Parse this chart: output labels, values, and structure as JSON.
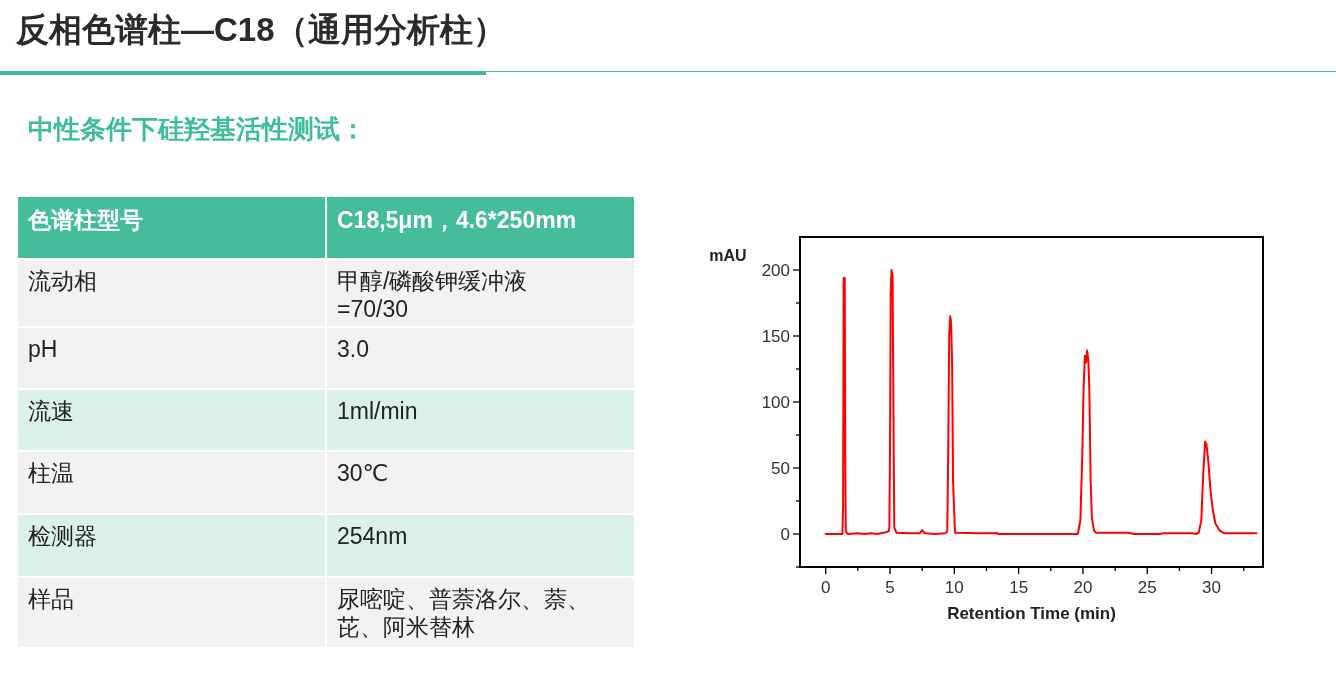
{
  "chart_data": [
    {
      "type": "other",
      "title": "反相色谱柱—C18（通用分析柱）",
      "subtitle": "中性条件下硅羟基活性测试：",
      "annotations": [
        "色谱柱型号",
        "C18,5μm，4.6*250mm",
        "流动相",
        "甲醇/磷酸钾缓冲液\n=70/30",
        "pH",
        "3.0",
        "流速",
        "1ml/min",
        "柱温",
        "30℃",
        "检测器",
        "254nm",
        "样品",
        "尿嘧啶、普萘洛尔、萘、芘、阿米替林"
      ]
    },
    {
      "type": "line",
      "xlabel": "Retention Time (min)",
      "ylabel": "mAU",
      "xlim": [
        -2,
        34
      ],
      "ylim": [
        -25,
        225
      ],
      "xticks": [
        0,
        {
          "value": 2.5,
          "label": null
        },
        5,
        {
          "value": 7.5,
          "label": null
        },
        10,
        {
          "value": 12.5,
          "label": null
        },
        15,
        {
          "value": 17.5,
          "label": null
        },
        20,
        {
          "value": 22.5,
          "label": null
        },
        25,
        {
          "value": 27.5,
          "label": null
        },
        30,
        {
          "value": 32.5,
          "label": null
        }
      ],
      "yticks": [
        {
          "value": -25,
          "label": null
        },
        0,
        {
          "value": 25,
          "label": null
        },
        50,
        {
          "value": 75,
          "label": null
        },
        100,
        {
          "value": 125,
          "label": null
        },
        150,
        {
          "value": 175,
          "label": null
        },
        200
      ],
      "series": [
        {
          "color": "#ff0000",
          "x": [
            0,
            1.3,
            1.35,
            1.4,
            1.48,
            1.52,
            1.56,
            1.7,
            2.5,
            3,
            3.5,
            4,
            4.5,
            4.9,
            4.95,
            5.0,
            5.05,
            5.12,
            5.2,
            5.27,
            5.33,
            5.5,
            6.5,
            7.3,
            7.5,
            7.7,
            8.5,
            9.3,
            9.45,
            9.52,
            9.6,
            9.68,
            9.75,
            9.83,
            9.9,
            10.05,
            12,
            13.2,
            13.3,
            13.4,
            19.5,
            19.6,
            19.8,
            19.95,
            20.05,
            20.15,
            20.25,
            20.32,
            20.42,
            20.5,
            20.6,
            20.7,
            20.85,
            21.0,
            23.5,
            24,
            26,
            26.2,
            28.5,
            28.8,
            29.0,
            29.2,
            29.35,
            29.5,
            29.6,
            29.75,
            29.9,
            30.1,
            30.3,
            30.6,
            31.0,
            33.5
          ],
          "values": [
            0,
            0,
            20,
            194,
            194,
            60,
            2,
            0,
            0.5,
            0,
            0.5,
            0,
            1,
            2,
            5,
            65,
            183,
            200,
            195,
            87,
            5,
            1,
            0.5,
            0.5,
            3,
            0.5,
            0,
            0.5,
            2,
            58,
            150,
            165,
            160,
            127,
            40,
            1,
            0.5,
            0.5,
            1,
            0,
            0,
            0,
            10,
            60,
            110,
            135,
            130,
            139,
            132,
            108,
            40,
            12,
            3,
            1,
            1,
            0,
            0,
            0.5,
            0.5,
            0,
            1,
            10,
            45,
            70,
            68,
            55,
            35,
            18,
            8,
            3,
            0.5,
            0.5
          ]
        }
      ]
    }
  ]
}
